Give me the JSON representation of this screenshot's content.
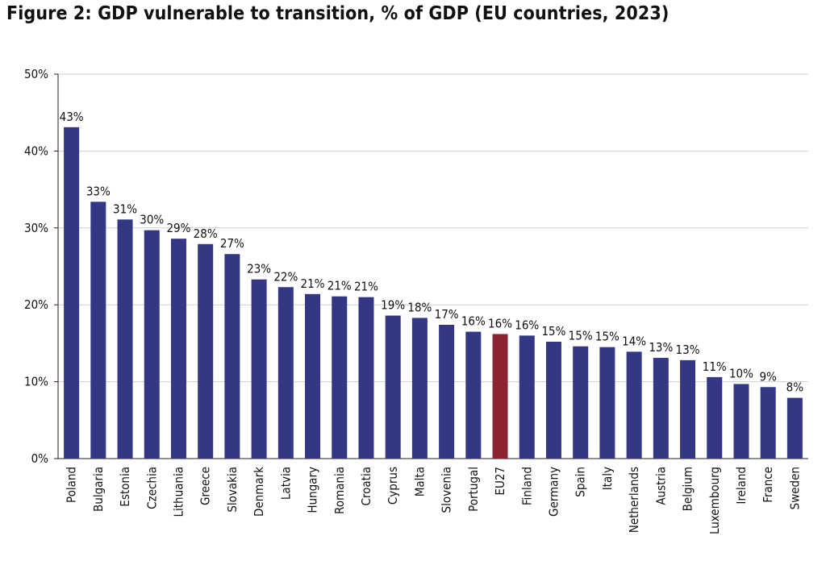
{
  "page": {
    "title": "Figure 2: GDP vulnerable to transition, % of GDP (EU countries, 2023)"
  },
  "colors": {
    "bar": "#343784",
    "highlight": "#8b2332",
    "grid": "#cfcfcf",
    "axis": "#222222",
    "text": "#111111"
  },
  "chart_data": {
    "type": "bar",
    "title": "Figure 2: GDP vulnerable to transition, % of GDP (EU countries, 2023)",
    "xlabel": "",
    "ylabel": "",
    "ylim": [
      0,
      50
    ],
    "yticks": [
      0,
      10,
      20,
      30,
      40,
      50
    ],
    "ytick_labels": [
      "0%",
      "10%",
      "20%",
      "30%",
      "40%",
      "50%"
    ],
    "grid": true,
    "categories": [
      "Poland",
      "Bulgaria",
      "Estonia",
      "Czechia",
      "Lithuania",
      "Greece",
      "Slovakia",
      "Denmark",
      "Latvia",
      "Hungary",
      "Romania",
      "Croatia",
      "Cyprus",
      "Malta",
      "Slovenia",
      "Portugal",
      "EU27",
      "Finland",
      "Germany",
      "Spain",
      "Italy",
      "Netherlands",
      "Austria",
      "Belgium",
      "Luxembourg",
      "Ireland",
      "France",
      "Sweden"
    ],
    "values": [
      43.1,
      33.4,
      31.1,
      29.7,
      28.6,
      27.9,
      26.6,
      23.3,
      22.3,
      21.4,
      21.1,
      21.0,
      18.6,
      18.3,
      17.4,
      16.5,
      16.2,
      16.0,
      15.2,
      14.6,
      14.5,
      13.9,
      13.1,
      12.8,
      10.6,
      9.7,
      9.3,
      7.9
    ],
    "data_labels": [
      "43%",
      "33%",
      "31%",
      "30%",
      "29%",
      "28%",
      "27%",
      "23%",
      "22%",
      "21%",
      "21%",
      "21%",
      "19%",
      "18%",
      "17%",
      "16%",
      "16%",
      "16%",
      "15%",
      "15%",
      "15%",
      "14%",
      "13%",
      "13%",
      "11%",
      "10%",
      "9%",
      "8%"
    ],
    "highlight_category": "EU27"
  }
}
